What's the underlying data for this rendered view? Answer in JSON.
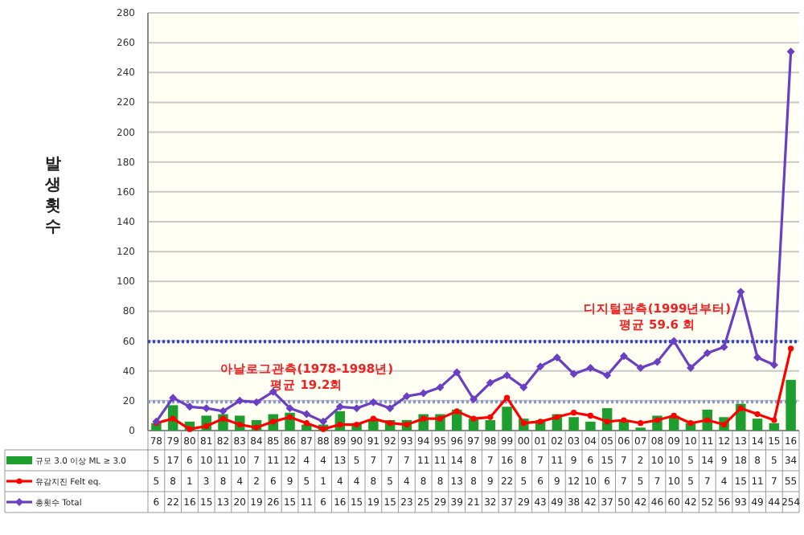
{
  "chart_data": {
    "type": "bar",
    "ylabel": "발생 횟수",
    "categories": [
      "78",
      "79",
      "80",
      "81",
      "82",
      "83",
      "84",
      "85",
      "86",
      "87",
      "88",
      "89",
      "90",
      "91",
      "92",
      "93",
      "94",
      "95",
      "96",
      "97",
      "98",
      "99",
      "00",
      "01",
      "02",
      "03",
      "04",
      "05",
      "06",
      "07",
      "08",
      "09",
      "10",
      "11",
      "12",
      "13",
      "14",
      "15",
      "16"
    ],
    "series": [
      {
        "name": "규모 3.0 이상 ML ≥ 3.0",
        "color": "#1e9e2e",
        "values": [
          5,
          17,
          6,
          10,
          11,
          10,
          7,
          11,
          12,
          4,
          4,
          13,
          5,
          7,
          7,
          7,
          11,
          11,
          14,
          8,
          7,
          16,
          8,
          7,
          11,
          9,
          6,
          15,
          7,
          2,
          10,
          10,
          5,
          14,
          9,
          18,
          8,
          5,
          34
        ]
      },
      {
        "name": "유감지진 Felt eq.",
        "type": "line",
        "color": "#ff0000",
        "marker": "circle",
        "values": [
          5,
          8,
          1,
          3,
          8,
          4,
          2,
          6,
          9,
          5,
          1,
          4,
          4,
          8,
          5,
          4,
          8,
          8,
          13,
          8,
          9,
          22,
          5,
          6,
          9,
          12,
          10,
          6,
          7,
          5,
          7,
          10,
          5,
          7,
          4,
          15,
          11,
          7,
          55
        ]
      },
      {
        "name": "총횟수 Total",
        "type": "line",
        "color": "#6a3fc4",
        "marker": "diamond",
        "values": [
          6,
          22,
          16,
          15,
          13,
          20,
          19,
          26,
          15,
          11,
          6,
          16,
          15,
          19,
          15,
          23,
          25,
          29,
          39,
          21,
          32,
          37,
          29,
          43,
          49,
          38,
          42,
          37,
          50,
          42,
          46,
          60,
          42,
          52,
          56,
          93,
          49,
          44,
          254
        ]
      }
    ],
    "ylim": [
      0,
      280
    ],
    "yticks": [
      0,
      20,
      40,
      60,
      80,
      100,
      120,
      140,
      160,
      180,
      200,
      220,
      240,
      260,
      280
    ],
    "grid": "y",
    "legend": "bottom left",
    "data_labels": true,
    "ref_lines": [
      {
        "axis": "y",
        "value": 19.2,
        "color": "#8899cc",
        "line_style": "dotted"
      },
      {
        "axis": "y",
        "value": 59.6,
        "color": "#3344cc",
        "line_style": "dotted"
      }
    ],
    "annotations": [
      {
        "text": "아날로그관측(1978-1998년)\n평균 19.2회",
        "x": "87",
        "y": 19.2
      },
      {
        "text": "디지털관측(1999년부터)\n평균 59.6 회",
        "x": "08",
        "y": 59.6
      }
    ]
  }
}
